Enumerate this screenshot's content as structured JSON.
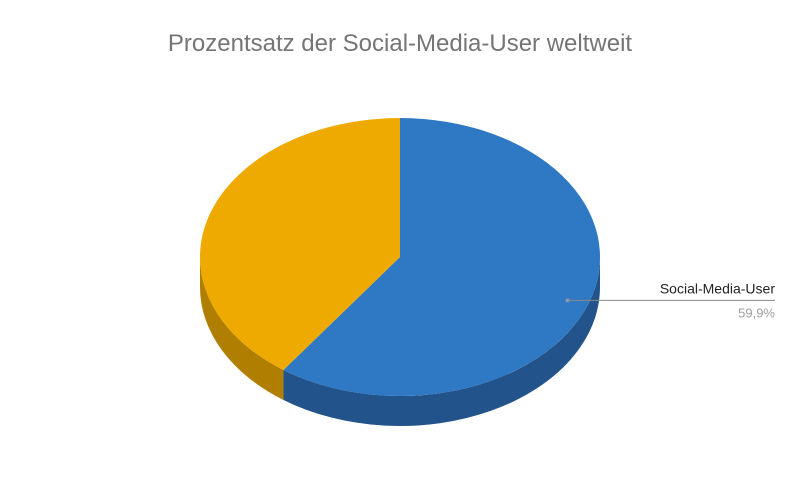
{
  "chart_data": {
    "type": "pie",
    "title": "Prozentsatz der Social-Media-User weltweit",
    "slices": [
      {
        "label": "Social-Media-User",
        "value": 59.9,
        "value_label": "59,9%",
        "color": "#2f78c4",
        "side_color": "#22548b"
      },
      {
        "label": "",
        "value": 40.1,
        "color": "#eeaa00",
        "side_color": "#b07e00"
      }
    ],
    "style": "3d",
    "legend": "none"
  }
}
